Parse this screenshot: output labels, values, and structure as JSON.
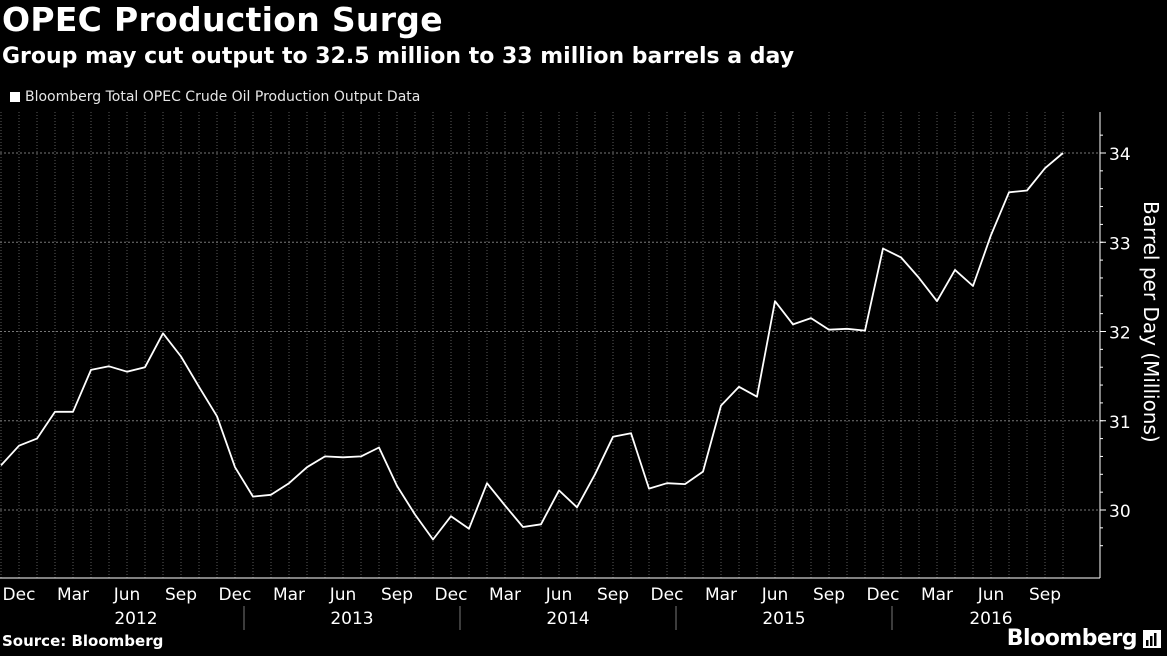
{
  "header": {
    "title": "OPEC Production Surge",
    "subtitle": "Group may cut output to 32.5 million to 33 million barrels a day"
  },
  "footer": {
    "source": "Source: Bloomberg",
    "brand": "Bloomberg"
  },
  "colors": {
    "background": "#000000",
    "line": "#ffffff",
    "grid": "#555555"
  },
  "chart_data": {
    "type": "line",
    "title": "OPEC Production Surge",
    "subtitle": "Group may cut output to 32.5 million to 33 million barrels a day",
    "ylabel": "Barrel per Day (Millions)",
    "xlabel": "",
    "legend": {
      "entries": [
        "Bloomberg Total OPEC Crude Oil Production Output Data"
      ],
      "placement": "top-left"
    },
    "ylim": [
      29.6,
      34.2
    ],
    "yticks": [
      30,
      31,
      32,
      33,
      34
    ],
    "x_tick_labels": [
      "Dec",
      "Mar",
      "Jun",
      "Sep",
      "Dec",
      "Mar",
      "Jun",
      "Sep",
      "Dec",
      "Mar",
      "Jun",
      "Sep",
      "Dec",
      "Mar",
      "Jun",
      "Sep",
      "Dec",
      "Mar",
      "Jun",
      "Sep"
    ],
    "year_labels": [
      "2012",
      "2013",
      "2014",
      "2015",
      "2016"
    ],
    "grid": true,
    "series": [
      {
        "name": "Bloomberg Total OPEC Crude Oil Production Output Data",
        "x": [
          "2011-11",
          "2011-12",
          "2012-01",
          "2012-02",
          "2012-03",
          "2012-04",
          "2012-05",
          "2012-06",
          "2012-07",
          "2012-08",
          "2012-09",
          "2012-10",
          "2012-11",
          "2012-12",
          "2013-01",
          "2013-02",
          "2013-03",
          "2013-04",
          "2013-05",
          "2013-06",
          "2013-07",
          "2013-08",
          "2013-09",
          "2013-10",
          "2013-11",
          "2013-12",
          "2014-01",
          "2014-02",
          "2014-03",
          "2014-04",
          "2014-05",
          "2014-06",
          "2014-07",
          "2014-08",
          "2014-09",
          "2014-10",
          "2014-11",
          "2014-12",
          "2015-01",
          "2015-02",
          "2015-03",
          "2015-04",
          "2015-05",
          "2015-06",
          "2015-07",
          "2015-08",
          "2015-09",
          "2015-10",
          "2015-11",
          "2015-12",
          "2016-01",
          "2016-02",
          "2016-03",
          "2016-04",
          "2016-05",
          "2016-06",
          "2016-07",
          "2016-08",
          "2016-09",
          "2016-10"
        ],
        "values": [
          30.5,
          30.72,
          30.8,
          31.1,
          31.1,
          31.57,
          31.61,
          31.55,
          31.6,
          31.98,
          31.72,
          31.38,
          31.05,
          30.48,
          30.15,
          30.17,
          30.3,
          30.48,
          30.6,
          30.59,
          30.6,
          30.7,
          30.27,
          29.95,
          29.67,
          29.93,
          29.79,
          30.3,
          30.05,
          29.81,
          29.84,
          30.22,
          30.03,
          30.4,
          30.82,
          30.86,
          30.24,
          30.3,
          30.29,
          30.43,
          31.17,
          31.38,
          31.27,
          32.34,
          32.08,
          32.15,
          32.02,
          32.03,
          32.01,
          32.93,
          32.83,
          32.6,
          32.34,
          32.69,
          32.51,
          33.08,
          33.56,
          33.58,
          33.83,
          34.0
        ]
      }
    ]
  }
}
